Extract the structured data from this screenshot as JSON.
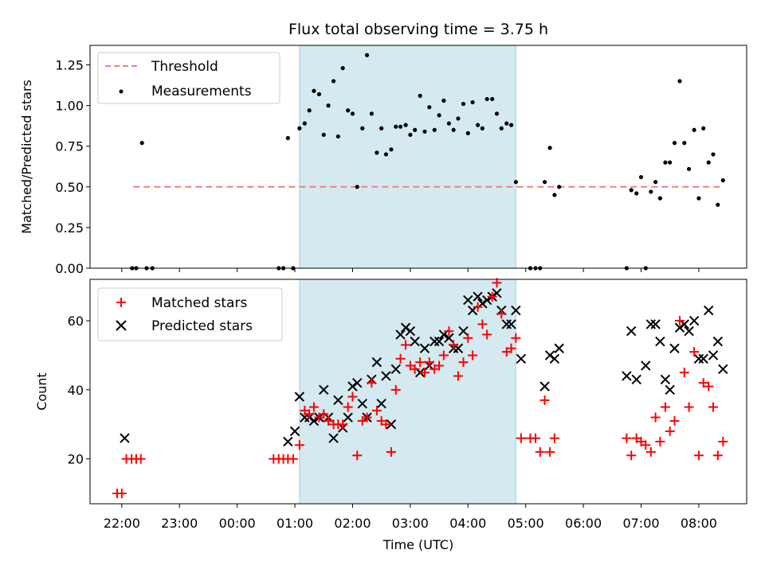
{
  "title": "Flux total observing time = 3.75 h",
  "chart_data": [
    {
      "type": "scatter",
      "ylabel": "Matched/Predicted stars",
      "ylim": [
        0,
        1.37
      ],
      "yticks": [
        "0.00",
        "0.25",
        "0.50",
        "0.75",
        "1.00",
        "1.25"
      ],
      "ytick_values": [
        0,
        0.25,
        0.5,
        0.75,
        1.0,
        1.25
      ],
      "legend_position": "top-left",
      "shaded_span_hours": [
        1.08,
        4.83
      ],
      "shade_color": "#d4eaf0",
      "threshold": {
        "name": "Threshold",
        "value": 0.5,
        "x_range": [
          -1.8,
          8.4
        ],
        "color": "#f08080"
      },
      "series": [
        {
          "name": "Measurements",
          "color": "#000000",
          "points": [
            [
              -1.82,
              0.0
            ],
            [
              -1.75,
              0.0
            ],
            [
              -1.65,
              0.77
            ],
            [
              -1.57,
              0.0
            ],
            [
              -1.47,
              0.0
            ],
            [
              0.72,
              0.0
            ],
            [
              0.8,
              0.0
            ],
            [
              0.88,
              0.8
            ],
            [
              0.97,
              0.0
            ],
            [
              1.08,
              0.86
            ],
            [
              1.17,
              0.89
            ],
            [
              1.25,
              0.97
            ],
            [
              1.33,
              1.09
            ],
            [
              1.42,
              1.07
            ],
            [
              1.5,
              0.82
            ],
            [
              1.58,
              1.0
            ],
            [
              1.67,
              1.15
            ],
            [
              1.75,
              0.81
            ],
            [
              1.83,
              1.23
            ],
            [
              1.92,
              0.97
            ],
            [
              2.0,
              0.95
            ],
            [
              2.08,
              0.5
            ],
            [
              2.17,
              0.86
            ],
            [
              2.25,
              1.31
            ],
            [
              2.33,
              0.95
            ],
            [
              2.42,
              0.71
            ],
            [
              2.5,
              0.86
            ],
            [
              2.58,
              0.7
            ],
            [
              2.67,
              0.73
            ],
            [
              2.75,
              0.87
            ],
            [
              2.83,
              0.87
            ],
            [
              2.92,
              0.88
            ],
            [
              3.0,
              0.82
            ],
            [
              3.08,
              0.85
            ],
            [
              3.17,
              1.06
            ],
            [
              3.25,
              0.84
            ],
            [
              3.33,
              0.99
            ],
            [
              3.42,
              0.85
            ],
            [
              3.5,
              0.94
            ],
            [
              3.58,
              1.03
            ],
            [
              3.67,
              0.89
            ],
            [
              3.75,
              0.85
            ],
            [
              3.83,
              0.92
            ],
            [
              3.92,
              1.01
            ],
            [
              4.0,
              0.83
            ],
            [
              4.08,
              1.02
            ],
            [
              4.17,
              0.88
            ],
            [
              4.25,
              0.86
            ],
            [
              4.33,
              1.04
            ],
            [
              4.42,
              1.04
            ],
            [
              4.5,
              0.95
            ],
            [
              4.58,
              0.86
            ],
            [
              4.67,
              0.89
            ],
            [
              4.75,
              0.88
            ],
            [
              4.83,
              0.53
            ],
            [
              5.08,
              0.0
            ],
            [
              5.17,
              0.0
            ],
            [
              5.25,
              0.0
            ],
            [
              5.33,
              0.53
            ],
            [
              5.42,
              0.74
            ],
            [
              5.5,
              0.45
            ],
            [
              5.58,
              0.5
            ],
            [
              6.75,
              0.0
            ],
            [
              6.83,
              0.48
            ],
            [
              6.92,
              0.46
            ],
            [
              7.0,
              0.56
            ],
            [
              7.08,
              0.0
            ],
            [
              7.17,
              0.47
            ],
            [
              7.25,
              0.53
            ],
            [
              7.33,
              0.43
            ],
            [
              7.42,
              0.65
            ],
            [
              7.5,
              0.65
            ],
            [
              7.58,
              0.77
            ],
            [
              7.67,
              1.15
            ],
            [
              7.75,
              0.77
            ],
            [
              7.83,
              0.61
            ],
            [
              7.92,
              0.85
            ],
            [
              8.0,
              0.43
            ],
            [
              8.08,
              0.86
            ],
            [
              8.17,
              0.65
            ],
            [
              8.25,
              0.7
            ],
            [
              8.33,
              0.39
            ],
            [
              8.42,
              0.54
            ]
          ]
        }
      ]
    },
    {
      "type": "scatter",
      "xlabel": "Time (UTC)",
      "ylabel": "Count",
      "ylim": [
        7,
        72
      ],
      "yticks": [
        "20",
        "40",
        "60"
      ],
      "ytick_values": [
        20,
        40,
        60
      ],
      "xlim_hours": [
        -2.55,
        8.83
      ],
      "xticks": [
        "22:00",
        "23:00",
        "00:00",
        "01:00",
        "02:00",
        "03:00",
        "04:00",
        "05:00",
        "06:00",
        "07:00",
        "08:00"
      ],
      "xtick_hours": [
        -2,
        -1,
        0,
        1,
        2,
        3,
        4,
        5,
        6,
        7,
        8
      ],
      "legend_position": "top-left",
      "series": [
        {
          "name": "Matched stars",
          "marker": "plus",
          "color": "#ff0000",
          "points": [
            [
              -2.08,
              10
            ],
            [
              -2.0,
              10
            ],
            [
              -1.92,
              20
            ],
            [
              -1.83,
              20
            ],
            [
              -1.75,
              20
            ],
            [
              -1.67,
              20
            ],
            [
              0.63,
              20
            ],
            [
              0.72,
              20
            ],
            [
              0.8,
              20
            ],
            [
              0.88,
              20
            ],
            [
              0.97,
              20
            ],
            [
              1.08,
              24
            ],
            [
              1.17,
              34
            ],
            [
              1.25,
              33
            ],
            [
              1.33,
              35
            ],
            [
              1.42,
              32
            ],
            [
              1.5,
              33
            ],
            [
              1.58,
              31
            ],
            [
              1.67,
              30
            ],
            [
              1.75,
              30
            ],
            [
              1.83,
              30
            ],
            [
              1.92,
              35
            ],
            [
              2.0,
              38
            ],
            [
              2.08,
              21
            ],
            [
              2.17,
              31
            ],
            [
              2.25,
              32
            ],
            [
              2.33,
              42
            ],
            [
              2.42,
              34
            ],
            [
              2.5,
              31
            ],
            [
              2.58,
              30
            ],
            [
              2.67,
              22
            ],
            [
              2.75,
              40
            ],
            [
              2.83,
              49
            ],
            [
              2.92,
              53
            ],
            [
              3.0,
              47
            ],
            [
              3.08,
              46
            ],
            [
              3.17,
              48
            ],
            [
              3.25,
              45
            ],
            [
              3.33,
              48
            ],
            [
              3.42,
              46
            ],
            [
              3.5,
              47
            ],
            [
              3.58,
              50
            ],
            [
              3.67,
              57
            ],
            [
              3.75,
              53
            ],
            [
              3.83,
              44
            ],
            [
              3.92,
              48
            ],
            [
              4.0,
              55
            ],
            [
              4.08,
              50
            ],
            [
              4.17,
              64
            ],
            [
              4.25,
              59
            ],
            [
              4.33,
              56
            ],
            [
              4.42,
              67
            ],
            [
              4.5,
              71
            ],
            [
              4.58,
              62
            ],
            [
              4.67,
              51
            ],
            [
              4.75,
              52
            ],
            [
              4.83,
              55
            ],
            [
              4.92,
              26
            ],
            [
              5.08,
              26
            ],
            [
              5.17,
              26
            ],
            [
              5.25,
              22
            ],
            [
              5.33,
              37
            ],
            [
              5.42,
              22
            ],
            [
              5.5,
              26
            ],
            [
              6.75,
              26
            ],
            [
              6.83,
              21
            ],
            [
              6.92,
              26
            ],
            [
              7.0,
              25
            ],
            [
              7.08,
              24
            ],
            [
              7.17,
              22
            ],
            [
              7.25,
              32
            ],
            [
              7.33,
              25
            ],
            [
              7.42,
              35
            ],
            [
              7.5,
              28
            ],
            [
              7.58,
              31
            ],
            [
              7.67,
              60
            ],
            [
              7.75,
              45
            ],
            [
              7.83,
              35
            ],
            [
              7.92,
              51
            ],
            [
              8.0,
              21
            ],
            [
              8.08,
              42
            ],
            [
              8.17,
              41
            ],
            [
              8.25,
              35
            ],
            [
              8.33,
              21
            ],
            [
              8.42,
              25
            ]
          ]
        },
        {
          "name": "Predicted stars",
          "marker": "x",
          "color": "#000000",
          "points": [
            [
              -1.95,
              26
            ],
            [
              0.88,
              25
            ],
            [
              1.0,
              28
            ],
            [
              1.08,
              38
            ],
            [
              1.17,
              32
            ],
            [
              1.25,
              32
            ],
            [
              1.33,
              31
            ],
            [
              1.42,
              32
            ],
            [
              1.5,
              40
            ],
            [
              1.58,
              32
            ],
            [
              1.67,
              26
            ],
            [
              1.75,
              37
            ],
            [
              1.83,
              29
            ],
            [
              1.92,
              32
            ],
            [
              2.0,
              41
            ],
            [
              2.08,
              42
            ],
            [
              2.17,
              36
            ],
            [
              2.25,
              32
            ],
            [
              2.33,
              43
            ],
            [
              2.42,
              48
            ],
            [
              2.5,
              36
            ],
            [
              2.58,
              44
            ],
            [
              2.67,
              30
            ],
            [
              2.75,
              46
            ],
            [
              2.83,
              56
            ],
            [
              2.92,
              58
            ],
            [
              3.0,
              57
            ],
            [
              3.08,
              54
            ],
            [
              3.17,
              45
            ],
            [
              3.25,
              52
            ],
            [
              3.33,
              47
            ],
            [
              3.42,
              54
            ],
            [
              3.5,
              54
            ],
            [
              3.58,
              56
            ],
            [
              3.67,
              55
            ],
            [
              3.75,
              52
            ],
            [
              3.83,
              52
            ],
            [
              3.92,
              57
            ],
            [
              4.0,
              66
            ],
            [
              4.08,
              63
            ],
            [
              4.17,
              67
            ],
            [
              4.25,
              65
            ],
            [
              4.33,
              66
            ],
            [
              4.42,
              67
            ],
            [
              4.5,
              68
            ],
            [
              4.58,
              63
            ],
            [
              4.67,
              59
            ],
            [
              4.75,
              59
            ],
            [
              4.83,
              63
            ],
            [
              4.92,
              49
            ],
            [
              5.33,
              41
            ],
            [
              5.42,
              50
            ],
            [
              5.5,
              49
            ],
            [
              5.58,
              52
            ],
            [
              6.75,
              44
            ],
            [
              6.83,
              57
            ],
            [
              6.92,
              43
            ],
            [
              7.08,
              47
            ],
            [
              7.17,
              59
            ],
            [
              7.25,
              59
            ],
            [
              7.33,
              54
            ],
            [
              7.42,
              43
            ],
            [
              7.5,
              40
            ],
            [
              7.58,
              52
            ],
            [
              7.67,
              58
            ],
            [
              7.75,
              59
            ],
            [
              7.83,
              57
            ],
            [
              7.92,
              60
            ],
            [
              8.0,
              49
            ],
            [
              8.08,
              49
            ],
            [
              8.17,
              63
            ],
            [
              8.25,
              50
            ],
            [
              8.33,
              54
            ],
            [
              8.42,
              46
            ]
          ]
        }
      ]
    }
  ]
}
